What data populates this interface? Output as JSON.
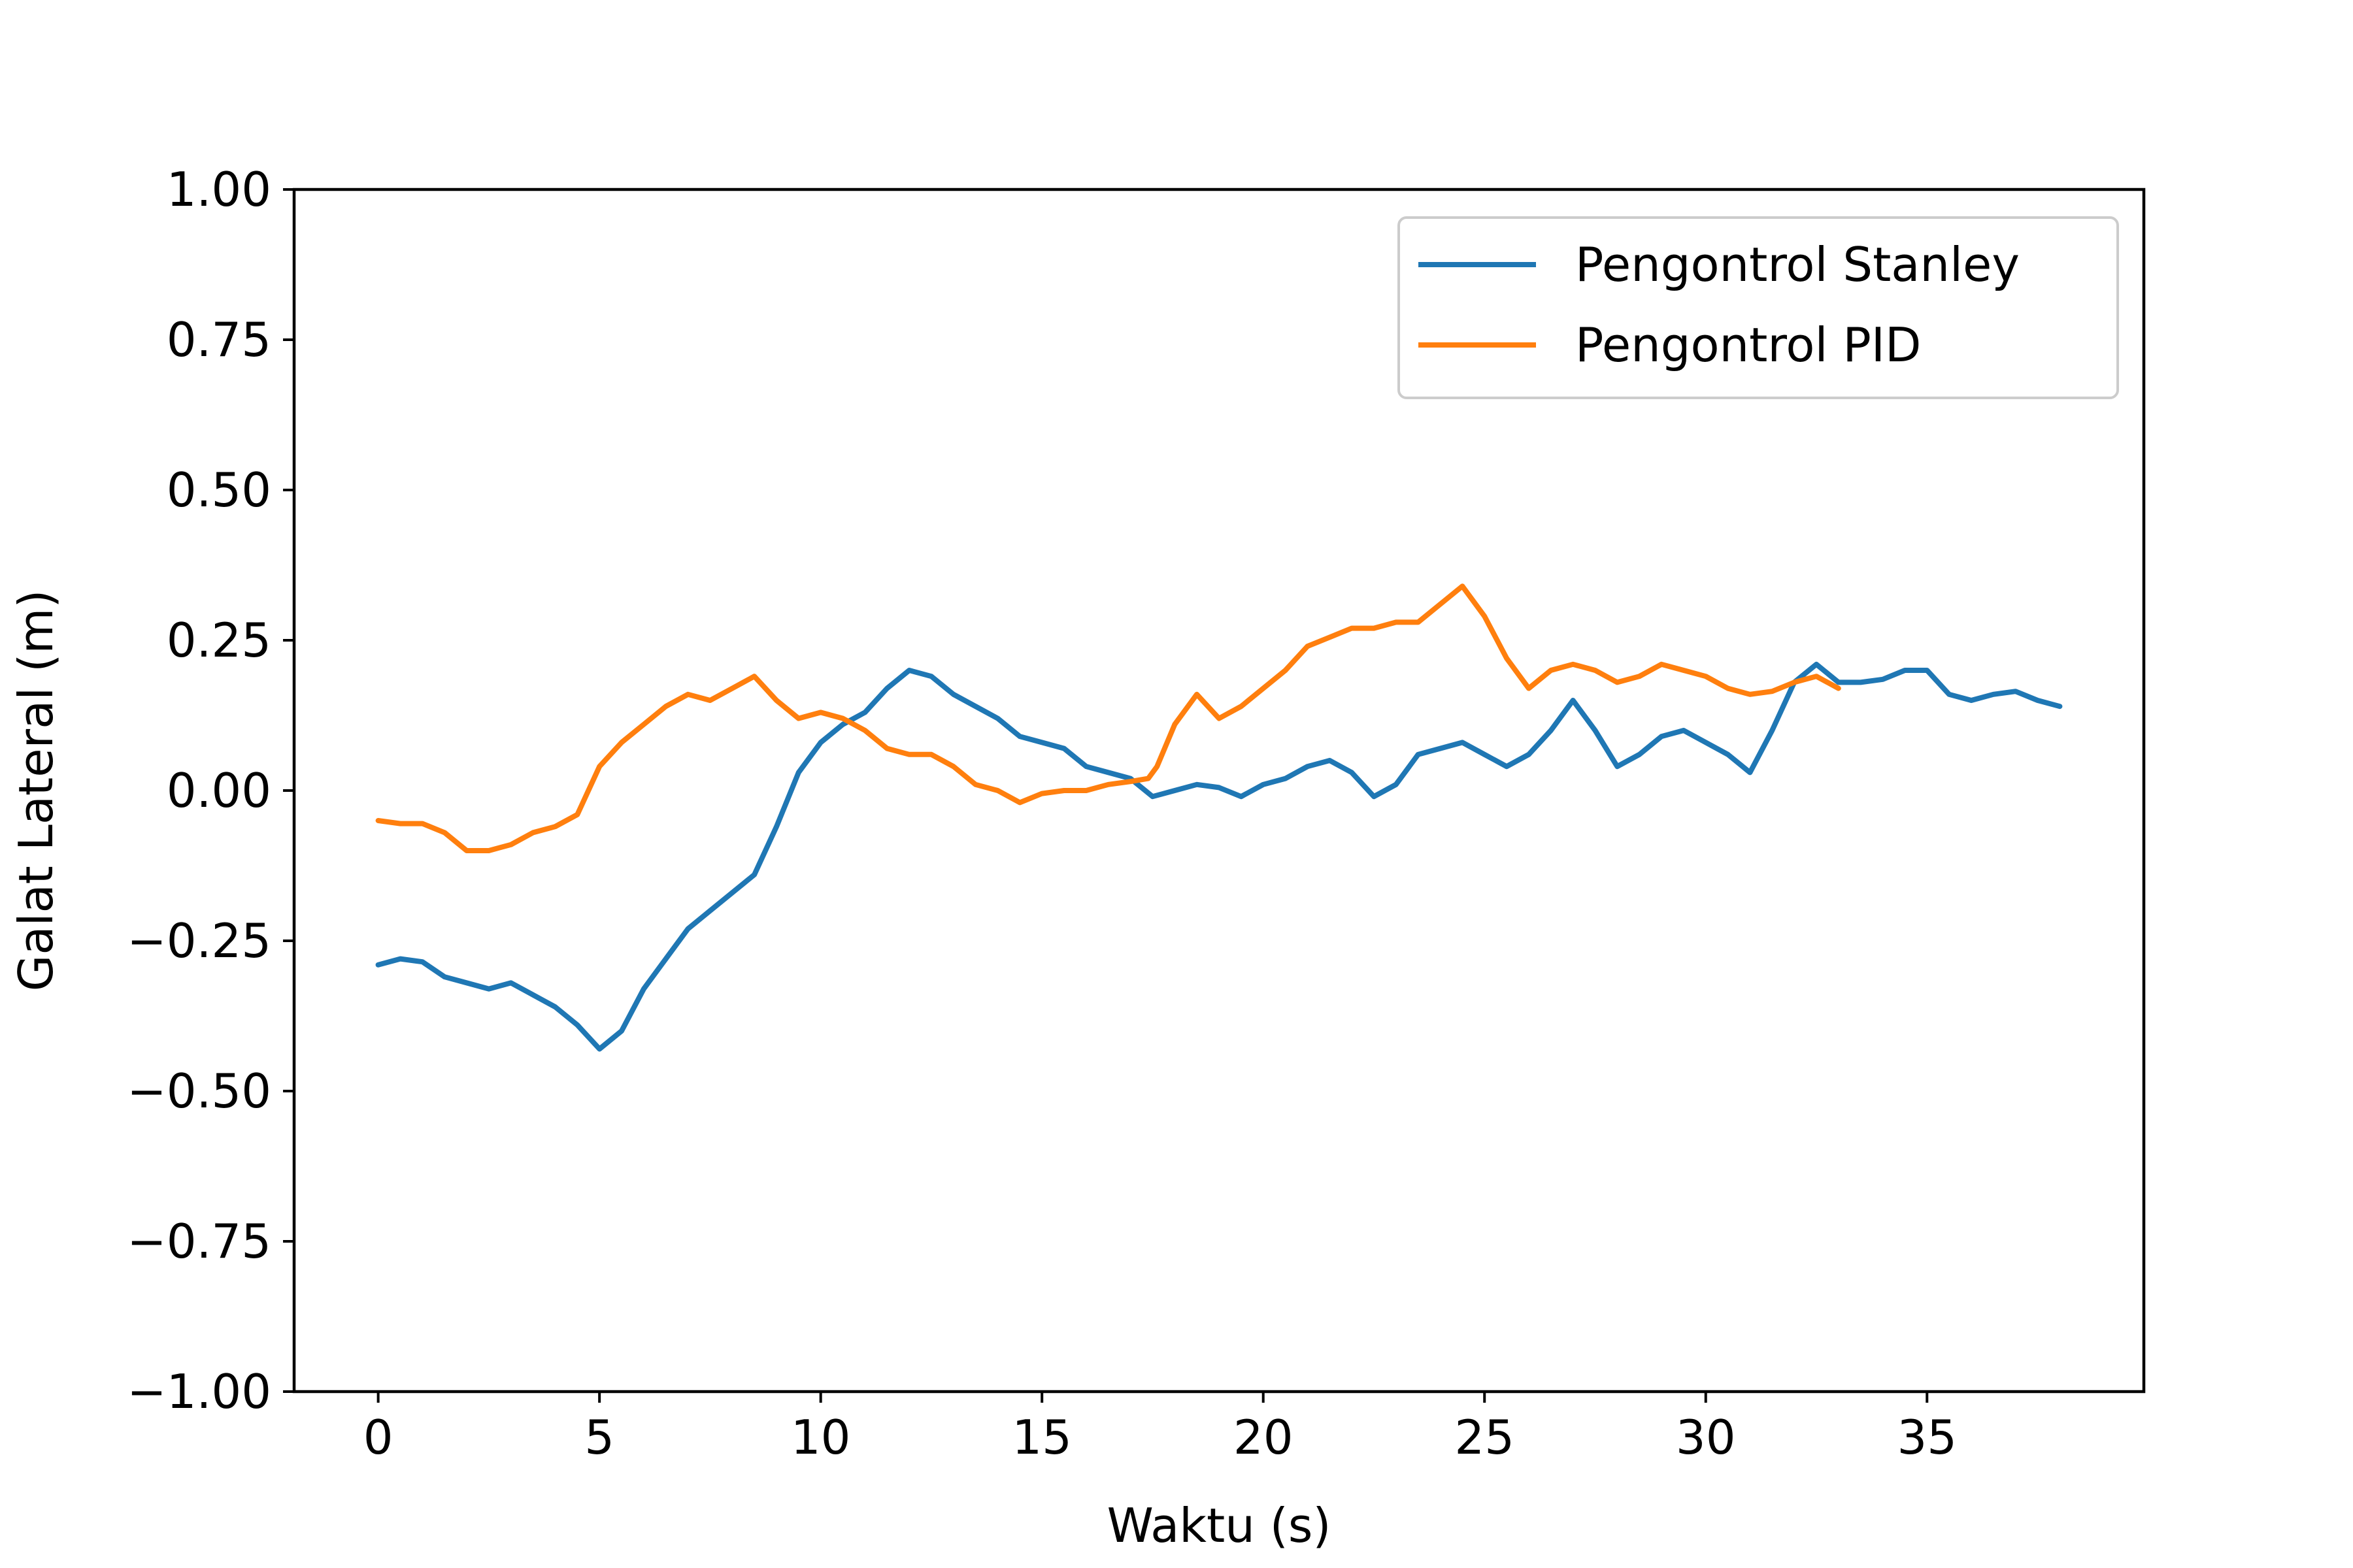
{
  "chart_data": {
    "type": "line",
    "title": "",
    "xlabel": "Waktu (s)",
    "ylabel": "Galat Lateral (m)",
    "xlim": [
      -1.9,
      39.9
    ],
    "ylim": [
      -1.0,
      1.0
    ],
    "xticks": [
      0,
      5,
      10,
      15,
      20,
      25,
      30,
      35
    ],
    "xtick_labels": [
      "0",
      "5",
      "10",
      "15",
      "20",
      "25",
      "30",
      "35"
    ],
    "yticks": [
      1.0,
      0.75,
      0.5,
      0.25,
      0.0,
      -0.25,
      -0.5,
      -0.75,
      -1.0
    ],
    "ytick_labels": [
      "1.00",
      "0.75",
      "0.50",
      "0.25",
      "0.00",
      "−0.25",
      "−0.50",
      "−0.75",
      "−1.00"
    ],
    "grid": false,
    "legend_position": "top-right",
    "series": [
      {
        "name": "Pengontrol Stanley",
        "color": "#1f77b4",
        "x": [
          0,
          0.5,
          1,
          1.5,
          2,
          2.5,
          3,
          3.5,
          4,
          4.5,
          5,
          5.5,
          6,
          6.5,
          7,
          7.5,
          8,
          8.5,
          9,
          9.5,
          10,
          10.5,
          11,
          11.5,
          12,
          12.5,
          13,
          13.5,
          14,
          14.5,
          15,
          15.5,
          16,
          16.5,
          17,
          17.5,
          18,
          18.5,
          19,
          19.5,
          20,
          20.5,
          21,
          21.5,
          22,
          22.5,
          23,
          23.5,
          24,
          24.5,
          25,
          25.5,
          26,
          26.5,
          27,
          27.5,
          28,
          28.5,
          29,
          29.5,
          30,
          30.5,
          31,
          31.5,
          32,
          32.5,
          33,
          33.5,
          34,
          34.5,
          35,
          35.5,
          36,
          36.5,
          37,
          37.5,
          38
        ],
        "y": [
          -0.29,
          -0.28,
          -0.285,
          -0.31,
          -0.32,
          -0.33,
          -0.32,
          -0.34,
          -0.36,
          -0.39,
          -0.43,
          -0.4,
          -0.33,
          -0.28,
          -0.23,
          -0.2,
          -0.17,
          -0.14,
          -0.06,
          0.03,
          0.08,
          0.11,
          0.13,
          0.17,
          0.2,
          0.19,
          0.16,
          0.14,
          0.12,
          0.09,
          0.08,
          0.07,
          0.04,
          0.03,
          0.02,
          -0.01,
          0.0,
          0.01,
          0.005,
          -0.01,
          0.01,
          0.02,
          0.04,
          0.05,
          0.03,
          -0.01,
          0.01,
          0.06,
          0.07,
          0.08,
          0.06,
          0.04,
          0.06,
          0.1,
          0.15,
          0.1,
          0.04,
          0.06,
          0.09,
          0.1,
          0.08,
          0.06,
          0.03,
          0.1,
          0.18,
          0.21,
          0.18,
          0.18,
          0.185,
          0.2,
          0.2,
          0.16,
          0.15,
          0.16,
          0.165,
          0.15,
          0.14
        ]
      },
      {
        "name": "Pengontrol PID",
        "color": "#ff7f0e",
        "x": [
          0,
          0.5,
          1,
          1.5,
          2,
          2.5,
          3,
          3.5,
          4,
          4.5,
          5,
          5.5,
          6,
          6.5,
          7,
          7.5,
          8,
          8.5,
          9,
          9.5,
          10,
          10.5,
          11,
          11.5,
          12,
          12.5,
          13,
          13.5,
          14,
          14.5,
          15,
          15.5,
          16,
          16.5,
          17,
          17.4,
          17.6,
          18,
          18.5,
          19,
          19.5,
          20,
          20.5,
          21,
          21.5,
          22,
          22.5,
          23,
          23.5,
          24,
          24.5,
          25,
          25.5,
          26,
          26.5,
          27,
          27.5,
          28,
          28.5,
          29,
          29.5,
          30,
          30.5,
          31,
          31.5,
          32,
          32.5,
          33
        ],
        "y": [
          -0.05,
          -0.055,
          -0.055,
          -0.07,
          -0.1,
          -0.1,
          -0.09,
          -0.07,
          -0.06,
          -0.04,
          0.04,
          0.08,
          0.11,
          0.14,
          0.16,
          0.15,
          0.17,
          0.19,
          0.15,
          0.12,
          0.13,
          0.12,
          0.1,
          0.07,
          0.06,
          0.06,
          0.04,
          0.01,
          0.0,
          -0.02,
          -0.005,
          0.0,
          0.0,
          0.01,
          0.015,
          0.02,
          0.04,
          0.11,
          0.16,
          0.12,
          0.14,
          0.17,
          0.2,
          0.24,
          0.255,
          0.27,
          0.27,
          0.28,
          0.28,
          0.31,
          0.34,
          0.29,
          0.22,
          0.17,
          0.2,
          0.21,
          0.2,
          0.18,
          0.19,
          0.21,
          0.2,
          0.19,
          0.17,
          0.16,
          0.165,
          0.18,
          0.19,
          0.17
        ]
      }
    ]
  }
}
